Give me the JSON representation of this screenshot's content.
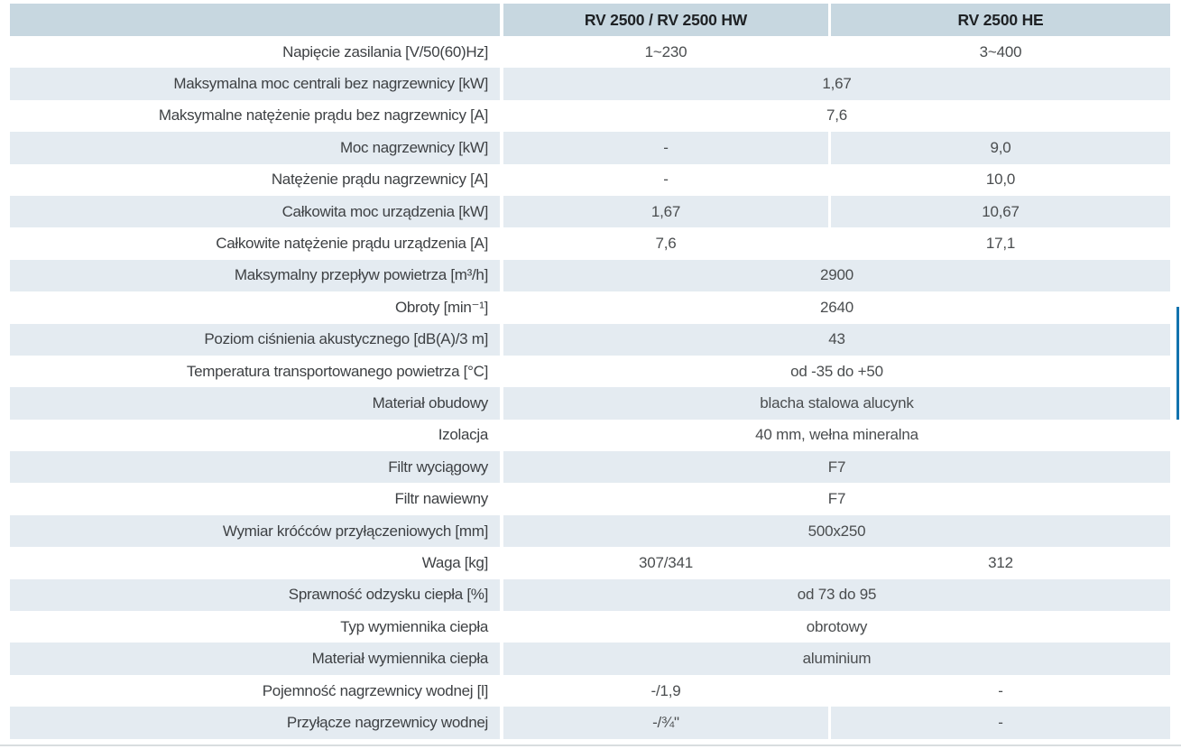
{
  "colors": {
    "header_bg": "#c7d7e0",
    "row_alt_bg": "#e4ebf1",
    "row_bg": "#ffffff",
    "header_text": "#1e2124",
    "label_text": "#3e4144",
    "value_text": "#4a4d4f",
    "side_marker": "#1273ae",
    "bottom_rule": "#d9dddf"
  },
  "table": {
    "columns": [
      "",
      "RV 2500 / RV 2500 HW",
      "RV 2500 HE"
    ],
    "rows": [
      {
        "label": "Napięcie zasilania [V/50(60)Hz]",
        "span": false,
        "values": [
          "1~230",
          "3~400"
        ]
      },
      {
        "label": "Maksymalna moc centrali bez nagrzewnicy [kW]",
        "span": true,
        "values": [
          "1,67"
        ]
      },
      {
        "label": "Maksymalne natężenie prądu bez nagrzewnicy [A]",
        "span": true,
        "values": [
          "7,6"
        ]
      },
      {
        "label": "Moc nagrzewnicy [kW]",
        "span": false,
        "values": [
          "-",
          "9,0"
        ]
      },
      {
        "label": "Natężenie prądu nagrzewnicy [A]",
        "span": false,
        "values": [
          "-",
          "10,0"
        ]
      },
      {
        "label": "Całkowita moc urządzenia [kW]",
        "span": false,
        "values": [
          "1,67",
          "10,67"
        ]
      },
      {
        "label": "Całkowite natężenie prądu urządzenia [A]",
        "span": false,
        "values": [
          "7,6",
          "17,1"
        ]
      },
      {
        "label": "Maksymalny przepływ powietrza [m³/h]",
        "span": true,
        "values": [
          "2900"
        ]
      },
      {
        "label": "Obroty [min⁻¹]",
        "span": true,
        "values": [
          "2640"
        ]
      },
      {
        "label": "Poziom ciśnienia akustycznego [dB(A)/3 m]",
        "span": true,
        "values": [
          "43"
        ]
      },
      {
        "label": "Temperatura transportowanego powietrza [°C]",
        "span": true,
        "values": [
          "od -35 do +50"
        ]
      },
      {
        "label": "Materiał obudowy",
        "span": true,
        "values": [
          "blacha stalowa alucynk"
        ]
      },
      {
        "label": "Izolacja",
        "span": true,
        "values": [
          "40 mm, wełna mineralna"
        ]
      },
      {
        "label": "Filtr wyciągowy",
        "span": true,
        "values": [
          "F7"
        ]
      },
      {
        "label": "Filtr nawiewny",
        "span": true,
        "values": [
          "F7"
        ]
      },
      {
        "label": "Wymiar króćców przyłączeniowych [mm]",
        "span": true,
        "values": [
          "500x250"
        ]
      },
      {
        "label": "Waga [kg]",
        "span": false,
        "values": [
          "307/341",
          "312"
        ]
      },
      {
        "label": "Sprawność odzysku ciepła [%]",
        "span": true,
        "values": [
          "od 73 do 95"
        ]
      },
      {
        "label": "Typ wymiennika ciepła",
        "span": true,
        "values": [
          "obrotowy"
        ]
      },
      {
        "label": "Materiał wymiennika ciepła",
        "span": true,
        "values": [
          "aluminium"
        ]
      },
      {
        "label": "Pojemność nagrzewnicy wodnej [l]",
        "span": false,
        "values": [
          "-/1,9",
          "-"
        ]
      },
      {
        "label": "Przyłącze nagrzewnicy wodnej",
        "span": false,
        "values": [
          "-/¾\"",
          "-"
        ]
      }
    ]
  }
}
